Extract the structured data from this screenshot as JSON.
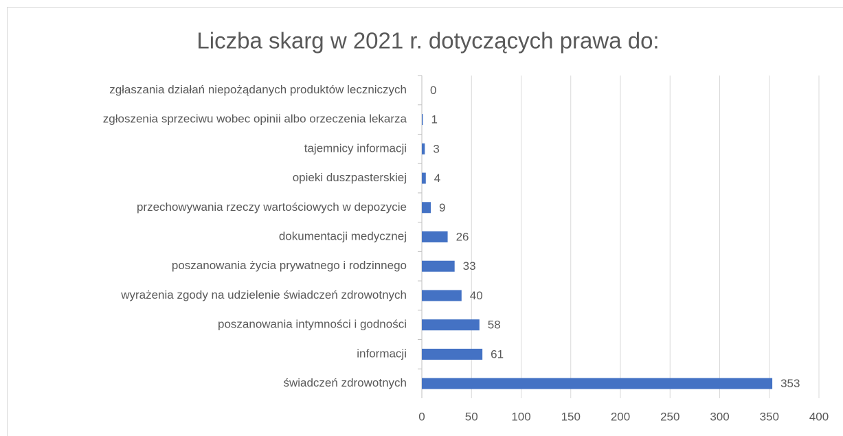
{
  "chart_data": {
    "type": "hbar",
    "title": "Liczba skarg w 2021 r. dotyczących prawa do:",
    "categories": [
      "zgłaszania działań niepożądanych produktów leczniczych",
      "zgłoszenia sprzeciwu wobec opinii albo orzeczenia lekarza",
      "tajemnicy informacji",
      "opieki duszpasterskiej",
      "przechowywania rzeczy wartościowych w depozycie",
      "dokumentacji medycznej",
      "poszanowania życia prywatnego i rodzinnego",
      "wyrażenia zgody na udzielenie świadczeń zdrowotnych",
      "poszanowania intymności i godności",
      "informacji",
      "świadczeń zdrowotnych"
    ],
    "values": [
      0,
      1,
      3,
      4,
      9,
      26,
      33,
      40,
      58,
      61,
      353
    ],
    "color": "#4472c4",
    "xlim": [
      0,
      400
    ],
    "xticks": [
      0,
      50,
      100,
      150,
      200,
      250,
      300,
      350,
      400
    ],
    "grid": true
  }
}
